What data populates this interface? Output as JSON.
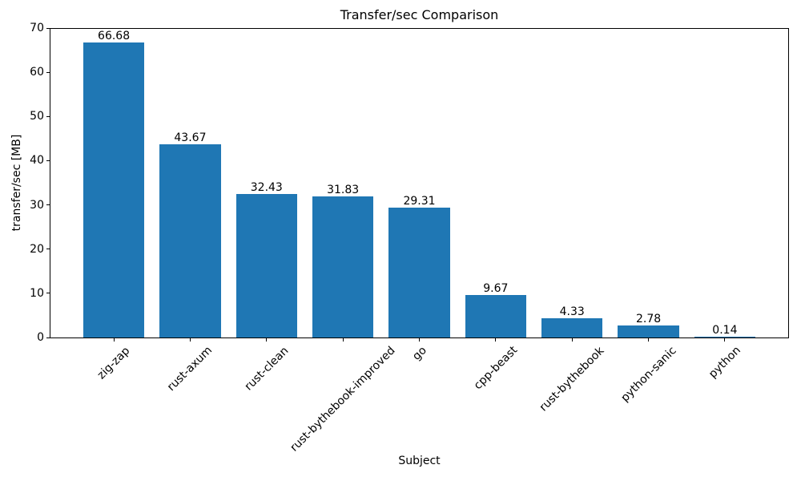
{
  "chart_data": {
    "type": "bar",
    "title": "Transfer/sec Comparison",
    "xlabel": "Subject",
    "ylabel": "transfer/sec [MB]",
    "categories": [
      "zig-zap",
      "rust-axum",
      "rust-clean",
      "rust-bythebook-improved",
      "go",
      "cpp-beast",
      "rust-bythebook",
      "python-sanic",
      "python"
    ],
    "values": [
      66.68,
      43.67,
      32.43,
      31.83,
      29.31,
      9.67,
      4.33,
      2.78,
      0.14
    ],
    "value_labels": [
      "66.68",
      "43.67",
      "32.43",
      "31.83",
      "29.31",
      "9.67",
      "4.33",
      "2.78",
      "0.14"
    ],
    "ylim": [
      0,
      70
    ],
    "yticks": [
      0,
      10,
      20,
      30,
      40,
      50,
      60,
      70
    ],
    "bar_color": "#1f77b4",
    "grid": false,
    "legend_position": "none"
  }
}
